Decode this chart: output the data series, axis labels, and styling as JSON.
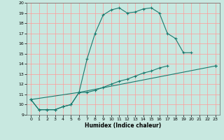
{
  "xlabel": "Humidex (Indice chaleur)",
  "background_color": "#c8e8e0",
  "grid_color": "#ff9999",
  "line_color": "#1a7a6e",
  "xlim": [
    -0.5,
    23.5
  ],
  "ylim": [
    9,
    20
  ],
  "xticks": [
    0,
    1,
    2,
    3,
    4,
    5,
    6,
    7,
    8,
    9,
    10,
    11,
    12,
    13,
    14,
    15,
    16,
    17,
    18,
    19,
    20,
    21,
    22,
    23
  ],
  "yticks": [
    9,
    10,
    11,
    12,
    13,
    14,
    15,
    16,
    17,
    18,
    19,
    20
  ],
  "curve1_x": [
    0,
    1,
    2,
    3,
    4,
    5,
    6,
    7,
    8,
    9,
    10,
    11,
    12,
    13,
    14,
    15,
    16,
    17,
    18,
    19,
    20,
    21,
    22,
    23
  ],
  "curve1_y": [
    10.5,
    9.5,
    9.5,
    9.5,
    9.8,
    10.0,
    11.2,
    14.5,
    17.0,
    18.8,
    19.3,
    19.5,
    19.0,
    19.1,
    19.4,
    19.5,
    19.0,
    17.0,
    16.5,
    15.1,
    15.1,
    null,
    null,
    13.8
  ],
  "curve2_x": [
    0,
    1,
    2,
    3,
    4,
    5,
    6,
    7,
    8,
    9,
    10,
    11,
    12,
    13,
    14,
    15,
    16,
    17,
    18,
    19,
    20,
    21,
    22,
    23
  ],
  "curve2_y": [
    10.5,
    9.5,
    9.5,
    9.5,
    9.8,
    10.0,
    11.2,
    11.2,
    11.4,
    11.7,
    12.0,
    12.3,
    12.5,
    12.8,
    13.1,
    13.3,
    13.6,
    13.8,
    null,
    null,
    null,
    null,
    null,
    13.8
  ],
  "curve3_x": [
    0,
    6,
    23
  ],
  "curve3_y": [
    10.5,
    11.2,
    13.8
  ]
}
